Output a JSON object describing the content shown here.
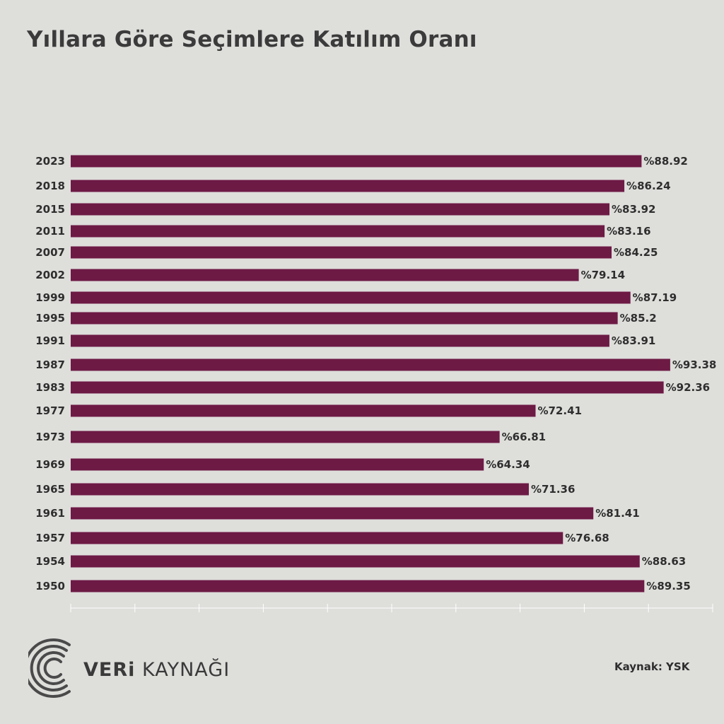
{
  "title": "Yıllara Göre Seçimlere Katılım Oranı",
  "source": "Kaynak: YSK",
  "logo": {
    "part1": "VERi",
    "part2": "KAYNAĞI"
  },
  "colors": {
    "bar": "#6d1a45",
    "background": "#dededb",
    "text": "#2e2e2e"
  },
  "chart_data": {
    "type": "bar",
    "orientation": "horizontal",
    "categories": [
      "2023",
      "2018",
      "2015",
      "2011",
      "2007",
      "2002",
      "1999",
      "1995",
      "1991",
      "1987",
      "1983",
      "1977",
      "1973",
      "1969",
      "1965",
      "1961",
      "1957",
      "1954",
      "1950"
    ],
    "values": [
      88.92,
      86.24,
      83.92,
      83.16,
      84.25,
      79.14,
      87.19,
      85.2,
      83.91,
      93.38,
      92.36,
      72.41,
      66.81,
      64.34,
      71.36,
      81.41,
      76.68,
      88.63,
      89.35
    ],
    "value_labels": [
      "%88.92",
      "%86.24",
      "%83.92",
      "%83.16",
      "%84.25",
      "%79.14",
      "%87.19",
      "%85.2",
      "%83.91",
      "%93.38",
      "%92.36",
      "%72.41",
      "%66.81",
      "%64.34",
      "%71.36",
      "%81.41",
      "%76.68",
      "%88.63",
      "%89.35"
    ],
    "xlim": [
      0,
      100
    ],
    "grid": false
  }
}
